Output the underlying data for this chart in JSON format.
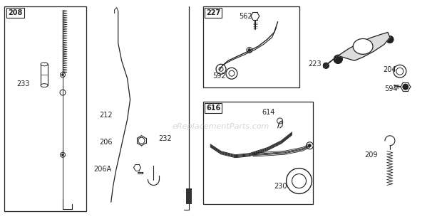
{
  "bg_color": "#ffffff",
  "watermark": "eReplacementParts.com",
  "gray": "#222222",
  "lgray": "#888888"
}
